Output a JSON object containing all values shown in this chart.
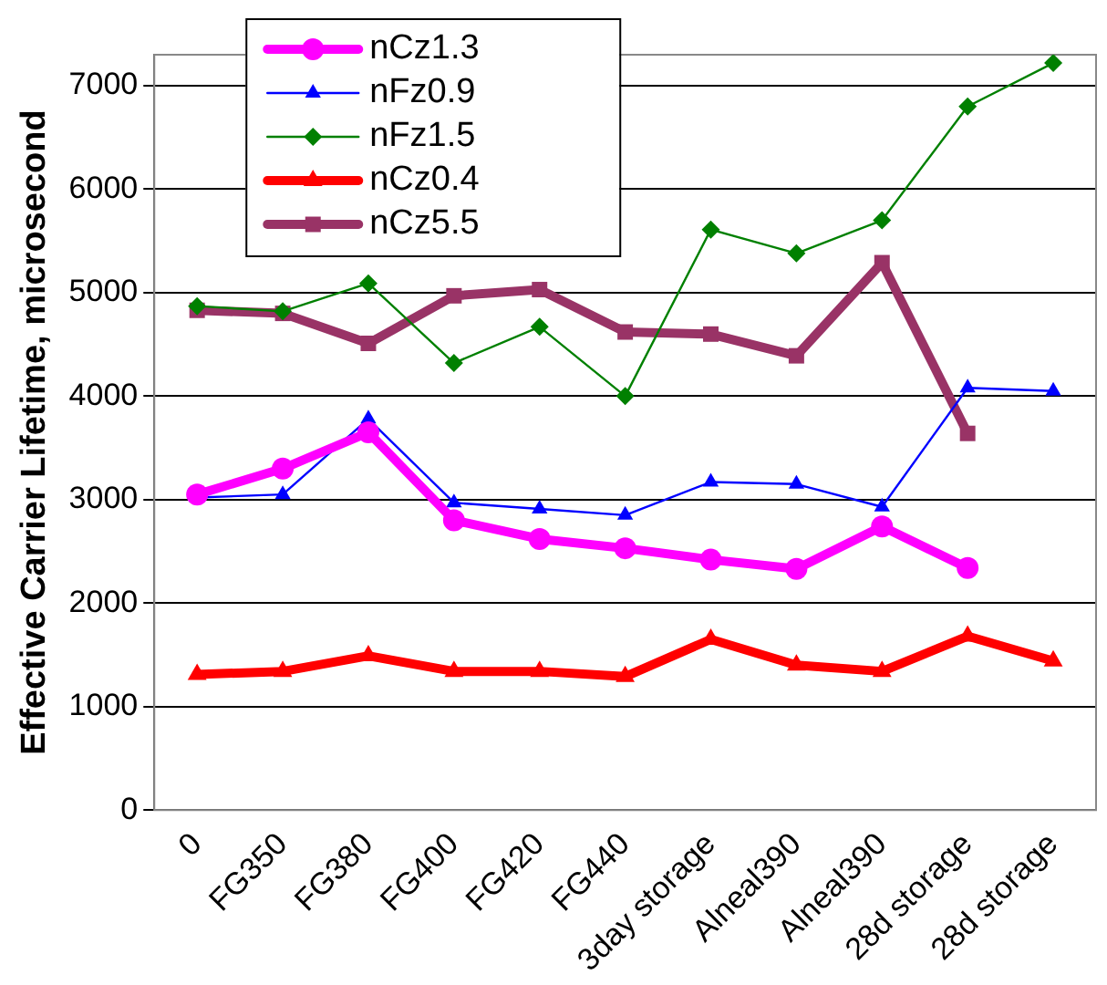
{
  "chart_data": {
    "type": "line",
    "ylabel": "Effective Carrier Lifetime, microsecond",
    "categories": [
      "0",
      "FG350",
      "FG380",
      "FG400",
      "FG420",
      "FG440",
      "3day storage",
      "Alneal390",
      "Alneal390",
      "28d storage",
      "28d storage"
    ],
    "ylim": [
      0,
      7300
    ],
    "yticks": [
      0,
      1000,
      2000,
      3000,
      4000,
      5000,
      6000,
      7000
    ],
    "grid": "y",
    "legend": "top left",
    "line_style": "solid",
    "series": [
      {
        "name": "nCz1.3",
        "color": "#ff00ff",
        "marker": "circle",
        "values": [
          3050,
          3300,
          3650,
          2800,
          2620,
          2530,
          2420,
          2330,
          2740,
          2340,
          null
        ]
      },
      {
        "name": "nFz0.9",
        "color": "#0000ff",
        "marker": "triangle",
        "values": [
          3020,
          3050,
          3780,
          2970,
          2910,
          2850,
          3170,
          3150,
          2930,
          4080,
          4050
        ]
      },
      {
        "name": "nFz1.5",
        "color": "#008000",
        "marker": "diamond",
        "values": [
          4870,
          4820,
          5090,
          4320,
          4670,
          4000,
          5610,
          5380,
          5700,
          6800,
          7220
        ]
      },
      {
        "name": "nCz0.4",
        "color": "#ff0000",
        "marker": "triangle",
        "values": [
          1310,
          1340,
          1490,
          1340,
          1340,
          1290,
          1650,
          1400,
          1340,
          1680,
          1440
        ]
      },
      {
        "name": "nCz5.5",
        "color": "#993366",
        "marker": "square",
        "values": [
          4830,
          4800,
          4510,
          4970,
          5030,
          4620,
          4600,
          4390,
          5290,
          3640,
          null
        ]
      }
    ]
  }
}
